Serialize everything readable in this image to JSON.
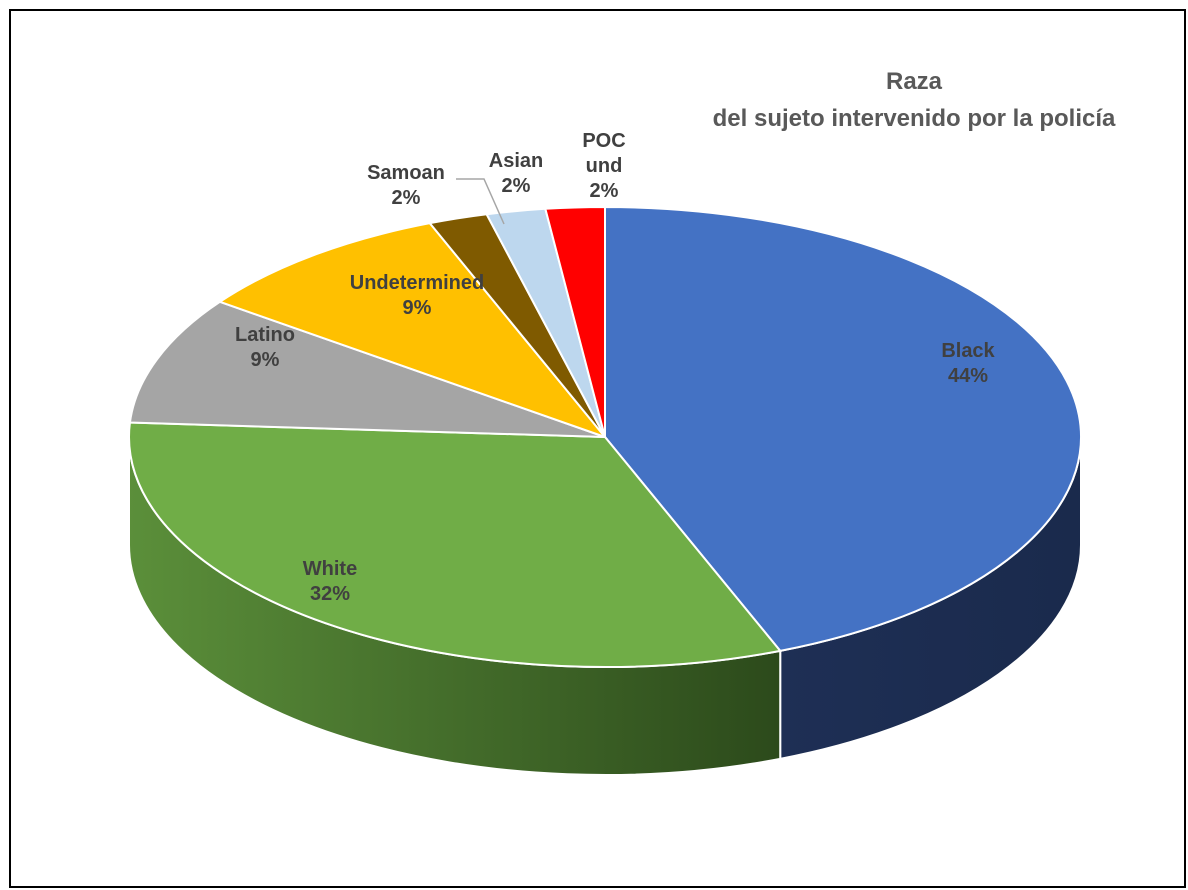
{
  "chart_data": {
    "type": "pie",
    "title": "Raza",
    "subtitle": "del sujeto intervenido por la policía",
    "three_d": true,
    "legend": "none",
    "slices": [
      {
        "name": "Black",
        "value": 44,
        "label": "44%",
        "color": "#4472C4"
      },
      {
        "name": "White",
        "value": 32,
        "label": "32%",
        "color": "#70AD47"
      },
      {
        "name": "Latino",
        "value": 9,
        "label": "9%",
        "color": "#A5A5A5"
      },
      {
        "name": "Undetermined",
        "value": 9,
        "label": "9%",
        "color": "#FFC000"
      },
      {
        "name": "Samoan",
        "value": 2,
        "label": "2%",
        "color": "#7F5A00"
      },
      {
        "name": "Asian",
        "value": 2,
        "label": "2%",
        "color": "#BDD7EE"
      },
      {
        "name": "POC und",
        "value": 2,
        "label": "2%",
        "color": "#FF0000"
      }
    ]
  }
}
